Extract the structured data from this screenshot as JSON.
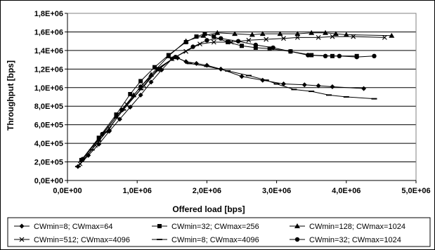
{
  "chart_data": {
    "type": "line",
    "xlabel": "Offered load [bps]",
    "ylabel": "Throughput [bps]",
    "xlim": [
      0,
      5000000
    ],
    "ylim": [
      0,
      1800000
    ],
    "x_ticks": [
      "0,0E+00",
      "1,0E+06",
      "2,0E+06",
      "3,0E+06",
      "4,0E+06",
      "5,0E+06"
    ],
    "y_ticks": [
      "0,0E+00",
      "2,0E+05",
      "4,0E+05",
      "6,0E+05",
      "8,0E+05",
      "1,0E+06",
      "1,2E+06",
      "1,4E+06",
      "1,6E+06",
      "1,8E+06"
    ],
    "grid": "horizontal",
    "legend_position": "bottom",
    "series": [
      {
        "name": "CWmin=8; CWmax=64",
        "marker": "diamond",
        "x": [
          150000,
          300000,
          450000,
          600000,
          750000,
          900000,
          1050000,
          1200000,
          1350000,
          1500000,
          1580000,
          1700000,
          1850000,
          2000000,
          2200000,
          2500000,
          2800000,
          3100000,
          3400000,
          3600000,
          3800000,
          4250000
        ],
        "y": [
          150000,
          270000,
          390000,
          530000,
          660000,
          790000,
          920000,
          1060000,
          1190000,
          1310000,
          1320000,
          1280000,
          1260000,
          1240000,
          1200000,
          1120000,
          1080000,
          1040000,
          1030000,
          1020000,
          1010000,
          990000
        ]
      },
      {
        "name": "CWmin=32; CWmax=256",
        "marker": "square",
        "x": [
          200000,
          450000,
          700000,
          900000,
          1050000,
          1250000,
          1450000,
          1700000,
          1850000,
          1970000,
          2100000,
          2300000,
          2500000,
          2700000,
          2900000,
          3200000,
          3500000,
          3800000,
          4150000
        ],
        "y": [
          220000,
          460000,
          710000,
          930000,
          1070000,
          1220000,
          1350000,
          1490000,
          1550000,
          1580000,
          1550000,
          1490000,
          1450000,
          1430000,
          1420000,
          1390000,
          1350000,
          1340000,
          1340000
        ]
      },
      {
        "name": "CWmin=128; CWmax=1024",
        "marker": "triangle",
        "x": [
          200000,
          450000,
          700000,
          950000,
          1200000,
          1450000,
          1700000,
          1950000,
          2150000,
          2400000,
          2650000,
          2800000,
          3050000,
          3300000,
          3500000,
          3700000,
          3850000,
          4000000,
          4650000
        ],
        "y": [
          220000,
          440000,
          690000,
          920000,
          1140000,
          1340000,
          1500000,
          1560000,
          1590000,
          1580000,
          1570000,
          1580000,
          1580000,
          1580000,
          1590000,
          1590000,
          1580000,
          1570000,
          1560000
        ]
      },
      {
        "name": "CWmin=512; CWmax=4096",
        "marker": "x",
        "x": [
          180000,
          400000,
          600000,
          850000,
          1100000,
          1300000,
          1500000,
          1700000,
          1900000,
          2100000,
          2350000,
          2600000,
          2850000,
          3100000,
          3300000,
          3600000,
          3800000,
          4100000,
          4550000
        ],
        "y": [
          180000,
          380000,
          560000,
          820000,
          1020000,
          1190000,
          1310000,
          1390000,
          1470000,
          1490000,
          1490000,
          1510000,
          1520000,
          1530000,
          1540000,
          1540000,
          1550000,
          1550000,
          1540000
        ]
      },
      {
        "name": "CWmin=8; CWmax=4096",
        "marker": "dash",
        "x": [
          150000,
          350000,
          550000,
          800000,
          1050000,
          1300000,
          1550000,
          1750000,
          2000000,
          2300000,
          2600000,
          2850000,
          3000000,
          3250000,
          3500000,
          3750000,
          4000000,
          4400000
        ],
        "y": [
          150000,
          330000,
          520000,
          760000,
          980000,
          1210000,
          1330000,
          1260000,
          1230000,
          1180000,
          1130000,
          1080000,
          1040000,
          980000,
          960000,
          920000,
          900000,
          880000
        ]
      },
      {
        "name": "CWmin=32; CWmax=1024",
        "marker": "circle",
        "x": [
          220000,
          500000,
          780000,
          1050000,
          1300000,
          1550000,
          1800000,
          2000000,
          2200000,
          2450000,
          2700000,
          2950000,
          3200000,
          3450000,
          3700000,
          3900000,
          4150000,
          4400000
        ],
        "y": [
          230000,
          500000,
          760000,
          1010000,
          1200000,
          1330000,
          1440000,
          1510000,
          1530000,
          1500000,
          1460000,
          1430000,
          1390000,
          1350000,
          1340000,
          1340000,
          1330000,
          1340000
        ]
      }
    ]
  }
}
